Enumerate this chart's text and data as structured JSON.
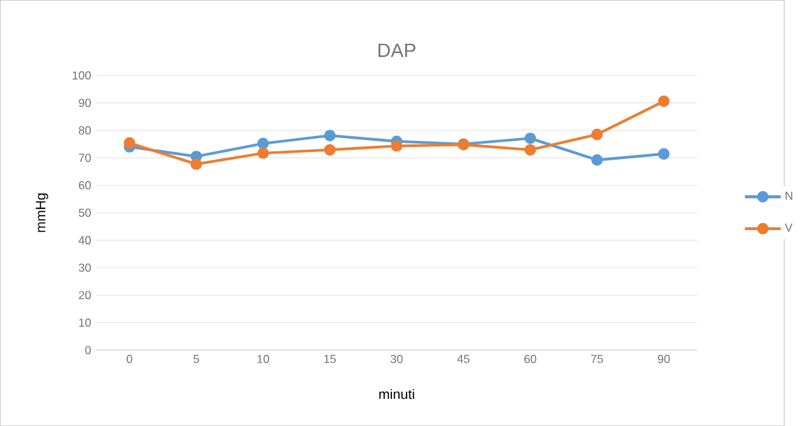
{
  "chart_data": {
    "type": "line",
    "title": "DAP",
    "xlabel": "minuti",
    "ylabel": "mmHg",
    "categories": [
      "0",
      "5",
      "10",
      "15",
      "30",
      "45",
      "60",
      "75",
      "90"
    ],
    "series": [
      {
        "name": "N",
        "color": "#5b9bd5",
        "values": [
          74,
          70.5,
          75.2,
          78.1,
          76,
          75,
          77.1,
          69.2,
          71.4
        ]
      },
      {
        "name": "V",
        "color": "#ed7d31",
        "values": [
          75.4,
          67.7,
          71.7,
          72.9,
          74.3,
          74.8,
          72.9,
          78.5,
          90.6
        ]
      }
    ],
    "ylim": [
      0,
      100
    ],
    "yticks": [
      0,
      10,
      20,
      30,
      40,
      50,
      60,
      70,
      80,
      90,
      100
    ],
    "grid": "y",
    "legend": "right",
    "marker": "circle",
    "line_style": "solid"
  }
}
